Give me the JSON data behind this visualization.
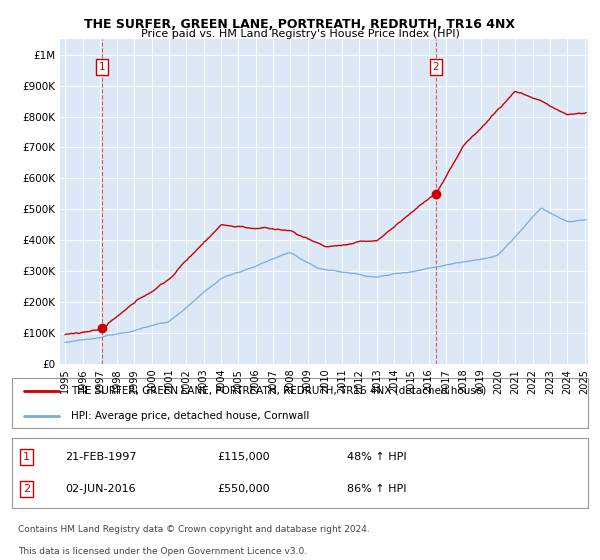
{
  "title": "THE SURFER, GREEN LANE, PORTREATH, REDRUTH, TR16 4NX",
  "subtitle": "Price paid vs. HM Land Registry's House Price Index (HPI)",
  "sale1_date": "21-FEB-1997",
  "sale1_price": 115000,
  "sale1_label": "48% ↑ HPI",
  "sale2_date": "02-JUN-2016",
  "sale2_price": 550000,
  "sale2_label": "86% ↑ HPI",
  "legend1": "THE SURFER, GREEN LANE, PORTREATH, REDRUTH, TR16 4NX (detached house)",
  "legend2": "HPI: Average price, detached house, Cornwall",
  "footnote1": "Contains HM Land Registry data © Crown copyright and database right 2024.",
  "footnote2": "This data is licensed under the Open Government Licence v3.0.",
  "hpi_color": "#7aacdc",
  "price_color": "#cc0000",
  "background_color": "#dce8f5",
  "ylim": [
    0,
    1050000
  ],
  "yticks": [
    0,
    100000,
    200000,
    300000,
    400000,
    500000,
    600000,
    700000,
    800000,
    900000,
    1000000
  ],
  "ytick_labels": [
    "£0",
    "£100K",
    "£200K",
    "£300K",
    "£400K",
    "£500K",
    "£600K",
    "£700K",
    "£800K",
    "£900K",
    "£1M"
  ],
  "sale1_x": 1997.13,
  "sale2_x": 2016.42,
  "xmin": 1995.0,
  "xmax": 2025.2
}
